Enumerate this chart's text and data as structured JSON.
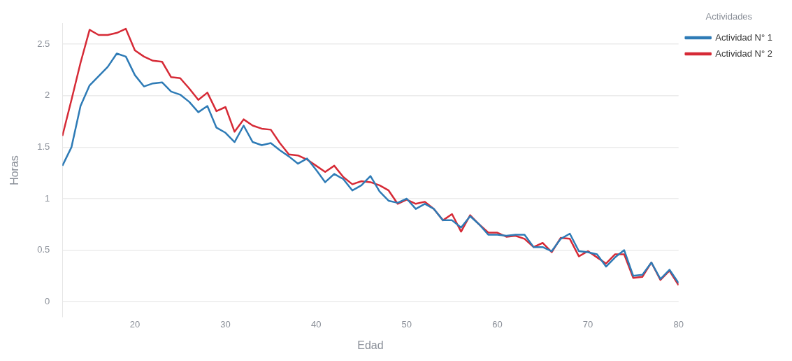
{
  "chart_data": {
    "type": "line",
    "xlabel": "Edad",
    "ylabel": "Horas",
    "legend_title": "Actividades",
    "x": [
      12,
      13,
      14,
      15,
      16,
      17,
      18,
      19,
      20,
      21,
      22,
      23,
      24,
      25,
      26,
      27,
      28,
      29,
      30,
      31,
      32,
      33,
      34,
      35,
      36,
      37,
      38,
      39,
      40,
      41,
      42,
      43,
      44,
      45,
      46,
      47,
      48,
      49,
      50,
      51,
      52,
      53,
      54,
      55,
      56,
      57,
      58,
      59,
      60,
      61,
      62,
      63,
      64,
      65,
      66,
      67,
      68,
      69,
      70,
      71,
      72,
      73,
      74,
      75,
      76,
      77,
      78,
      79,
      80
    ],
    "series": [
      {
        "name": "Actividad N° 1",
        "color": "#2e7bb6",
        "values": [
          1.32,
          1.5,
          1.9,
          2.1,
          2.19,
          2.28,
          2.41,
          2.38,
          2.2,
          2.09,
          2.12,
          2.13,
          2.04,
          2.01,
          1.94,
          1.84,
          1.9,
          1.69,
          1.64,
          1.55,
          1.71,
          1.55,
          1.52,
          1.54,
          1.47,
          1.41,
          1.34,
          1.39,
          1.28,
          1.16,
          1.24,
          1.19,
          1.08,
          1.13,
          1.22,
          1.07,
          0.98,
          0.96,
          1.0,
          0.9,
          0.95,
          0.9,
          0.79,
          0.79,
          0.72,
          0.83,
          0.75,
          0.65,
          0.65,
          0.64,
          0.65,
          0.65,
          0.53,
          0.53,
          0.49,
          0.61,
          0.66,
          0.49,
          0.48,
          0.46,
          0.34,
          0.43,
          0.5,
          0.25,
          0.26,
          0.38,
          0.22,
          0.31,
          0.18
        ]
      },
      {
        "name": "Actividad N° 2",
        "color": "#d62a36",
        "values": [
          1.61,
          1.96,
          2.32,
          2.64,
          2.59,
          2.59,
          2.61,
          2.65,
          2.44,
          2.38,
          2.34,
          2.33,
          2.18,
          2.17,
          2.07,
          1.96,
          2.03,
          1.85,
          1.89,
          1.65,
          1.77,
          1.71,
          1.68,
          1.67,
          1.54,
          1.43,
          1.42,
          1.38,
          1.32,
          1.26,
          1.32,
          1.21,
          1.14,
          1.17,
          1.16,
          1.13,
          1.08,
          0.95,
          0.99,
          0.95,
          0.97,
          0.9,
          0.79,
          0.85,
          0.68,
          0.84,
          0.75,
          0.67,
          0.67,
          0.63,
          0.64,
          0.61,
          0.53,
          0.57,
          0.48,
          0.62,
          0.61,
          0.44,
          0.49,
          0.43,
          0.37,
          0.46,
          0.46,
          0.23,
          0.24,
          0.38,
          0.21,
          0.3,
          0.16
        ]
      }
    ],
    "xlim": [
      12,
      80
    ],
    "xticks": [
      20,
      30,
      40,
      50,
      60,
      70,
      80
    ],
    "ylim": [
      -0.15,
      2.7
    ],
    "yticks": [
      0,
      {
        "value": 0.5,
        "label": "0.5"
      },
      1,
      {
        "value": 1.5,
        "label": "1.5"
      },
      2,
      {
        "value": 2.5,
        "label": "2.5"
      }
    ],
    "grid": "y",
    "legend": "top right",
    "marker": "none",
    "line_style": "solid"
  }
}
